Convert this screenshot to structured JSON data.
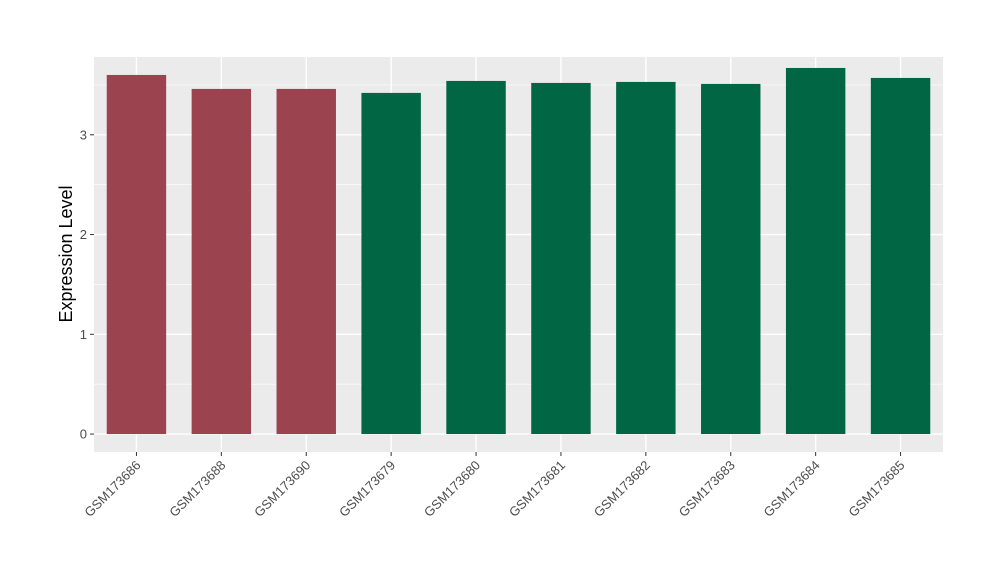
{
  "chart_data": {
    "type": "bar",
    "ylabel": "Expression Level",
    "categories": [
      "GSM173686",
      "GSM173688",
      "GSM173690",
      "GSM173679",
      "GSM173680",
      "GSM173681",
      "GSM173682",
      "GSM173683",
      "GSM173684",
      "GSM173685"
    ],
    "values": [
      3.6,
      3.46,
      3.46,
      3.42,
      3.54,
      3.52,
      3.53,
      3.51,
      3.67,
      3.57
    ],
    "groups": [
      0,
      0,
      0,
      1,
      1,
      1,
      1,
      1,
      1,
      1
    ],
    "group_colors": [
      "#9b4450",
      "#016643"
    ],
    "ylim": [
      -0.18,
      3.78
    ],
    "yticks": [
      0,
      1,
      2,
      3
    ],
    "grid": true,
    "panel_background": "#ebebeb",
    "grid_color": "#ffffff"
  }
}
